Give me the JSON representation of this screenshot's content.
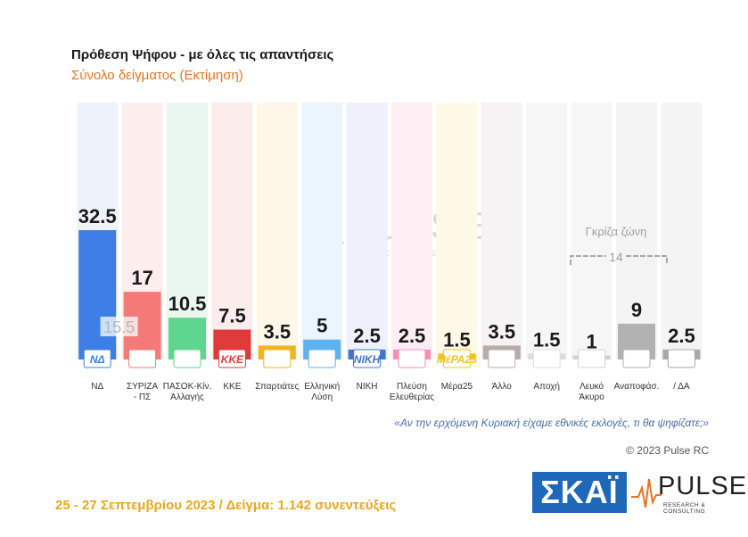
{
  "chart_data": {
    "type": "bar",
    "title": "Πρόθεση Ψήφου - με όλες τις απαντήσεις",
    "subtitle": "Σύνολο δείγματος   (Εκτίμηση)",
    "categories": [
      "ΝΔ",
      "ΣΥΡΙΖΑ - ΠΣ",
      "ΠΑΣΟΚ-Κίν. Αλλαγής",
      "ΚΚΕ",
      "Σπαρτιάτες",
      "Ελληνική Λύση",
      "ΝΙΚΗ",
      "Πλεύση Ελευθερίας",
      "Μέρα25",
      "Άλλο",
      "Αποχή",
      "Λευκό Άκυρο",
      "Αναποφάσ.",
      "/ ΔΑ"
    ],
    "category_lines": [
      [
        "ΝΔ"
      ],
      [
        "ΣΥΡΙΖΑ",
        "- ΠΣ"
      ],
      [
        "ΠΑΣΟΚ-Κίν.",
        "Αλλαγής"
      ],
      [
        "ΚΚΕ"
      ],
      [
        "Σπαρτιάτες"
      ],
      [
        "Ελληνική",
        "Λύση"
      ],
      [
        "ΝΙΚΗ"
      ],
      [
        "Πλεύση",
        "Ελευθερίας"
      ],
      [
        "Μέρα25"
      ],
      [
        "Άλλο"
      ],
      [
        "Αποχή"
      ],
      [
        "Λευκό",
        "Άκυρο"
      ],
      [
        "Αναποφάσ."
      ],
      [
        "/ ΔΑ"
      ]
    ],
    "values": [
      32.5,
      17,
      10.5,
      7.5,
      3.5,
      5,
      2.5,
      2.5,
      1.5,
      3.5,
      1.5,
      1,
      9,
      2.5
    ],
    "value_labels": [
      "32.5",
      "17",
      "10.5",
      "7.5",
      "3.5",
      "5",
      "2.5",
      "2.5",
      "1.5",
      "3.5",
      "1.5",
      "1",
      "9",
      "2.5"
    ],
    "colors": [
      "#3d7fe6",
      "#f47a78",
      "#5ed68f",
      "#e03a3a",
      "#f2b320",
      "#5fb2ee",
      "#3f75cc",
      "#f58fb4",
      "#f2c320",
      "#b8aca8",
      "#dcdcdc",
      "#d0d0d0",
      "#b2b2b2",
      "#a8a8a8"
    ],
    "column_bg": [
      "#eef3fb",
      "#fdeded",
      "#eaf7ef",
      "#fdecec",
      "#fdf7e8",
      "#eaf5fd",
      "#eef1fb",
      "#fdeef4",
      "#fdf9e6",
      "#f5f3f3",
      "#f6f6f6",
      "#f6f6f6",
      "#f4f4f4",
      "#f4f4f4"
    ],
    "logo_text": [
      "ΝΔ",
      "",
      "",
      "ΚΚΕ",
      "",
      "",
      "ΝΙΚΗ",
      "",
      "ΜέΡΑ25",
      "",
      "",
      "",
      "",
      ""
    ],
    "annotation_value": "15.5",
    "grey_zone_label": "Γκρίζα ζώνη",
    "grey_zone_total": "14",
    "ylim": [
      0,
      34
    ]
  },
  "watermark": {
    "name": "PULSE",
    "tagline": "RESEARCH & CONSULTING"
  },
  "question": "«Αν την ερχόμενη Κυριακή είχαμε εθνικές εκλογές, τι θα ψηφίζατε;»",
  "copyright": "© 2023 Pulse RC",
  "footer": "25 - 27  Σεπτεμβρίου  2023  /  Δείγμα:  1.142 συνεντεύξεις",
  "logos": {
    "skai": "ΣΚΑΪ",
    "pulse": "PULSE",
    "pulse_tagline": "RESEARCH & CONSULTING"
  }
}
